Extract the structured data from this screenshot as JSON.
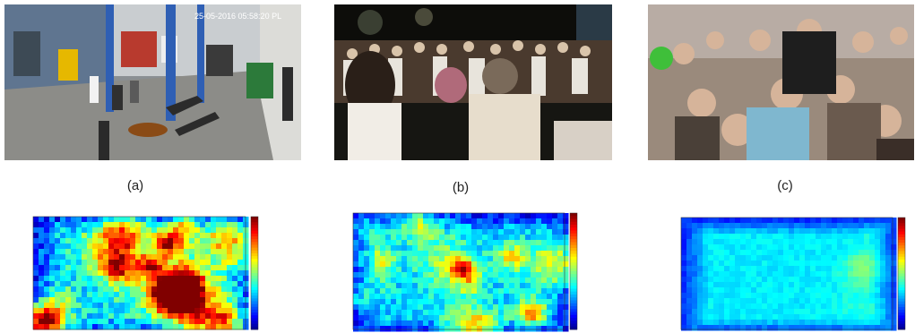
{
  "figure": {
    "panels": [
      {
        "label": "(a)",
        "photo_overlay_text": "25-05-2016 05:58:20 PL",
        "photo_icon": "garage-surveillance-photo",
        "heatmap_icon": "heatmap-high-variance"
      },
      {
        "label": "(b)",
        "photo_icon": "night-dance-crowd-photo",
        "heatmap_icon": "heatmap-medium-variance"
      },
      {
        "label": "(c)",
        "photo_icon": "street-crowd-photo",
        "heatmap_icon": "heatmap-low-variance"
      }
    ],
    "colors": {
      "heat_low": "#00008f",
      "heat_mid": "#2fd0ff",
      "heat_high": "#ffdd00",
      "heat_peak": "#d40000"
    }
  }
}
